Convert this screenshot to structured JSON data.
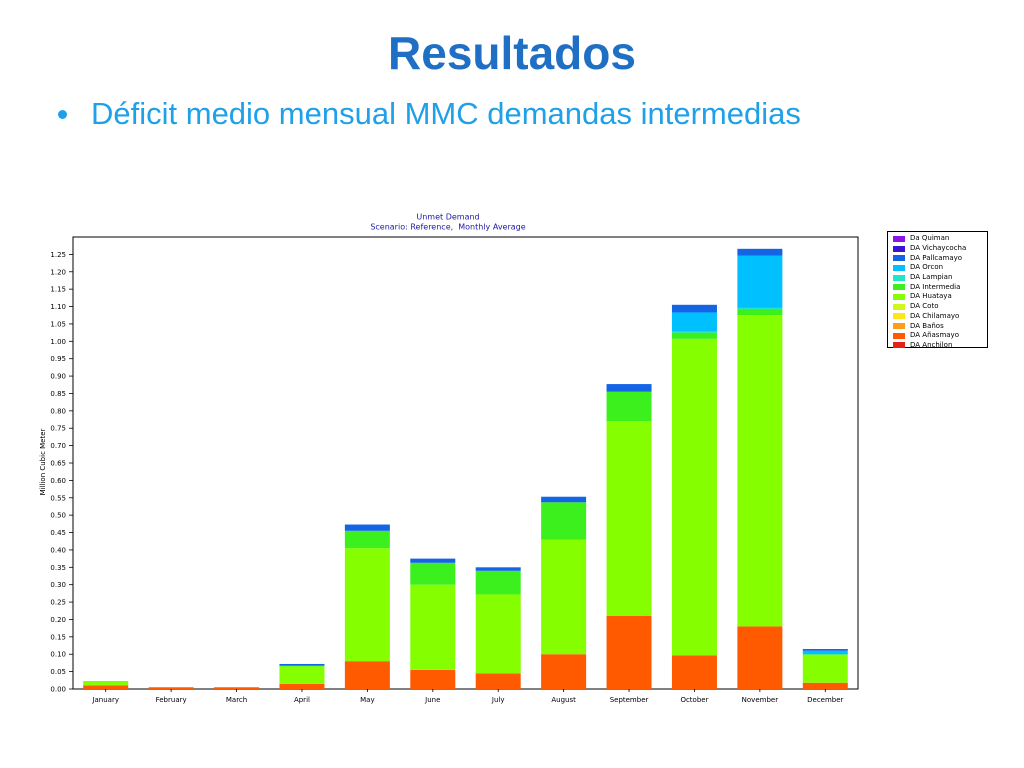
{
  "slide": {
    "title": "Resultados",
    "bullet": "Déficit medio mensual MMC demandas intermedias"
  },
  "colors": {
    "title": "#1f6fc5",
    "bullet": "#1fa0e8",
    "chart_title": "#1a1aa8"
  },
  "chart_data": {
    "type": "bar",
    "stacked": true,
    "title": "Unmet Demand",
    "subtitle": "Scenario: Reference,  Monthly Average",
    "xlabel": "",
    "ylabel": "Million Cubic Meter",
    "ylim": [
      0,
      1.3
    ],
    "yticks": [
      0.0,
      0.05,
      0.1,
      0.15,
      0.2,
      0.25,
      0.3,
      0.35,
      0.4,
      0.45,
      0.5,
      0.55,
      0.6,
      0.65,
      0.7,
      0.75,
      0.8,
      0.85,
      0.9,
      0.95,
      1.0,
      1.05,
      1.1,
      1.15,
      1.2,
      1.25
    ],
    "ytick_labels": [
      "0.00",
      "0.05",
      "0.10",
      "0.15",
      "0.20",
      "0.25",
      "0.30",
      "0.35",
      "0.40",
      "0.45",
      "0.50",
      "0.55",
      "0.60",
      "0.65",
      "0.70",
      "0.75",
      "0.80",
      "0.85",
      "0.90",
      "0.95",
      "1.00",
      "1.05",
      "1.10",
      "1.15",
      "1.20",
      "1.25"
    ],
    "categories": [
      "January",
      "February",
      "March",
      "April",
      "May",
      "June",
      "July",
      "August",
      "September",
      "October",
      "November",
      "December"
    ],
    "legend_position": "right-top outside",
    "grid": false,
    "series": [
      {
        "name": "DA Anchilon",
        "color": "#e8201a",
        "values": [
          0,
          0,
          0,
          0,
          0,
          0,
          0,
          0,
          0,
          0,
          0,
          0
        ]
      },
      {
        "name": "DA Añasmayo",
        "color": "#ff5a00",
        "values": [
          0.01,
          0.005,
          0.005,
          0.015,
          0.08,
          0.055,
          0.045,
          0.1,
          0.21,
          0.097,
          0.18,
          0.018
        ]
      },
      {
        "name": "DA Baños",
        "color": "#ff9c1a",
        "values": [
          0,
          0,
          0,
          0,
          0,
          0,
          0,
          0,
          0,
          0,
          0,
          0
        ]
      },
      {
        "name": "DA Chilamayo",
        "color": "#ffe61a",
        "values": [
          0,
          0,
          0,
          0,
          0,
          0,
          0,
          0,
          0,
          0,
          0,
          0
        ]
      },
      {
        "name": "DA Coto",
        "color": "#d2f51a",
        "values": [
          0,
          0,
          0,
          0,
          0,
          0,
          0,
          0,
          0,
          0,
          0,
          0
        ]
      },
      {
        "name": "DA Huataya",
        "color": "#85ff00",
        "values": [
          0.013,
          0,
          0,
          0.05,
          0.325,
          0.245,
          0.227,
          0.33,
          0.56,
          0.91,
          0.895,
          0.08
        ]
      },
      {
        "name": "DA Intermedia",
        "color": "#3cf01e",
        "values": [
          0,
          0,
          0,
          0.002,
          0.05,
          0.063,
          0.068,
          0.107,
          0.085,
          0.018,
          0.018,
          0.002
        ]
      },
      {
        "name": "DA Lampian",
        "color": "#1ee6c8",
        "values": [
          0,
          0,
          0,
          0,
          0,
          0,
          0,
          0,
          0,
          0.003,
          0.003,
          0
        ]
      },
      {
        "name": "DA Orcon",
        "color": "#00c0ff",
        "values": [
          0,
          0,
          0,
          0,
          0,
          0,
          0,
          0,
          0,
          0.055,
          0.15,
          0.01
        ]
      },
      {
        "name": "DA Pallcamayo",
        "color": "#1464e6",
        "values": [
          0,
          0,
          0,
          0.005,
          0.018,
          0.012,
          0.01,
          0.016,
          0.022,
          0.022,
          0.02,
          0.005
        ]
      },
      {
        "name": "DA Vichaycocha",
        "color": "#3a14d2",
        "values": [
          0,
          0,
          0,
          0,
          0,
          0,
          0,
          0,
          0,
          0,
          0,
          0
        ]
      },
      {
        "name": "Da Quiman",
        "color": "#8c14e6",
        "values": [
          0,
          0,
          0,
          0,
          0,
          0,
          0,
          0,
          0,
          0,
          0,
          0
        ]
      }
    ]
  }
}
